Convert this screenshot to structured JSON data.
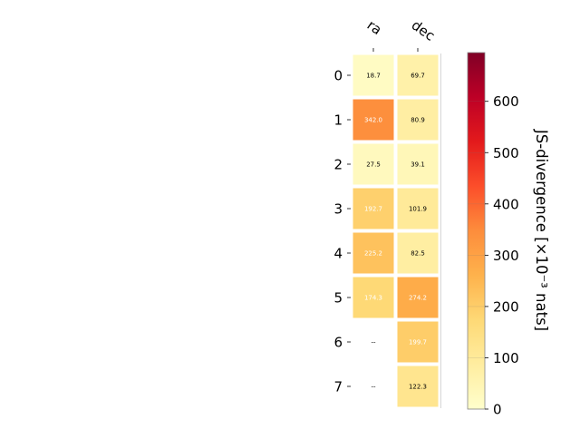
{
  "chart_data": {
    "type": "heatmap",
    "columns": [
      "ra",
      "dec"
    ],
    "rows": [
      "0",
      "1",
      "2",
      "3",
      "4",
      "5",
      "6",
      "7"
    ],
    "values": [
      [
        18.7,
        69.7
      ],
      [
        342.0,
        80.9
      ],
      [
        27.5,
        39.1
      ],
      [
        192.7,
        101.9
      ],
      [
        225.2,
        82.5
      ],
      [
        174.3,
        274.2
      ],
      [
        null,
        199.7
      ],
      [
        null,
        122.3
      ]
    ],
    "cell_labels": [
      [
        "18.7",
        "69.7"
      ],
      [
        "342.0",
        "80.9"
      ],
      [
        "27.5",
        "39.1"
      ],
      [
        "192.7",
        "101.9"
      ],
      [
        "225.2",
        "82.5"
      ],
      [
        "174.3",
        "274.2"
      ],
      [
        "--",
        "199.7"
      ],
      [
        "--",
        "122.3"
      ]
    ],
    "colorbar": {
      "label": "JS-divergence [×10⁻³ nats]",
      "range": [
        0,
        695
      ],
      "ticks": [
        0,
        100,
        200,
        300,
        400,
        500,
        600
      ],
      "tick_labels": [
        "0",
        "100",
        "200",
        "300",
        "400",
        "500",
        "600"
      ],
      "colormap": "YlOrRd"
    },
    "title": "",
    "xlabel": "",
    "ylabel": "",
    "grid": false,
    "legend": "none"
  }
}
